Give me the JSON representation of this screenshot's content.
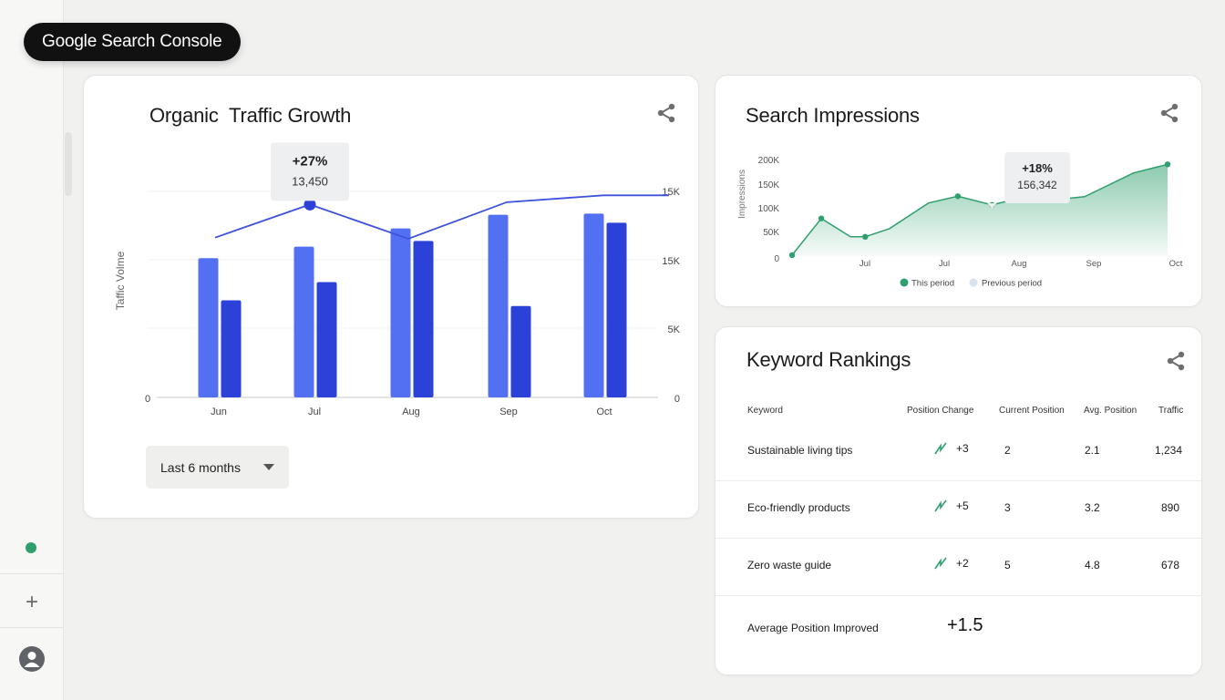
{
  "brand": {
    "title": "Google Search Console"
  },
  "sidebar": {
    "status_color": "#2e9f6d",
    "add_icon": "plus-icon",
    "account_icon": "account-circle-icon"
  },
  "traffic_card": {
    "title": "Organic  Traffic Growth",
    "share_icon": "share-icon",
    "period_selector": {
      "selected": "Last 6 months",
      "icon": "caret-down-icon"
    },
    "tooltip": {
      "change": "+27%",
      "value": "13,450"
    }
  },
  "impressions_card": {
    "title": "Search Impressions",
    "share_icon": "share-icon",
    "tooltip": {
      "change": "+18%",
      "value": "156,342"
    }
  },
  "keyword_card": {
    "title": "Keyword Rankings",
    "share_icon": "share-icon",
    "columns": [
      "Keyword",
      "Position Change",
      "Current Position",
      "Avg. Position",
      "Traffic"
    ],
    "rows": [
      {
        "keyword": "Sustainable living tips",
        "change": "+3",
        "current": "2",
        "avg": "2.1",
        "traffic": "1,234"
      },
      {
        "keyword": "Eco-friendly products",
        "change": "+5",
        "current": "3",
        "avg": "3.2",
        "traffic": "890"
      },
      {
        "keyword": "Zero waste guide",
        "change": "+2",
        "current": "5",
        "avg": "4.8",
        "traffic": "678"
      }
    ],
    "summary": {
      "label": "Average Position Improved",
      "value": "+1.5"
    },
    "trend_color": "#2e9f6d"
  },
  "chart_data": [
    {
      "type": "bar",
      "title": "Organic  Traffic Growth",
      "ylabel": "Taffic Volme",
      "categories": [
        "Jun",
        "Jul",
        "Aug",
        "Sep",
        "Oct"
      ],
      "left_ticks": [
        "0"
      ],
      "right_ticks": [
        "15K",
        "15K",
        "5K",
        "0"
      ],
      "series": [
        {
          "values": [
            12.2,
            13.2,
            14.8,
            16.0,
            16.1
          ],
          "color": "#5470f2"
        },
        {
          "values": [
            8.5,
            10.1,
            13.7,
            8.0,
            15.3
          ],
          "color": "#2b41d8"
        }
      ],
      "trend_line": {
        "values": [
          14.0,
          16.9,
          13.9,
          17.1,
          17.7
        ],
        "highlight_index": 1,
        "color": "#3e52de"
      },
      "ylim": [
        0,
        21
      ],
      "colors": {
        "light_bar": "#5470f2",
        "dark_bar": "#2b41d8",
        "line": "#3e52de"
      }
    },
    {
      "type": "area",
      "title": "Search Impressions",
      "ylabel": "Impressions",
      "categories": [
        "Jul",
        "Jul",
        "Aug",
        "Sep",
        "Oct"
      ],
      "y_ticks": [
        "200K",
        "150K",
        "100K",
        "50K",
        "0"
      ],
      "series": [
        {
          "name": "This period",
          "color": "#2e9f6d",
          "points": [
            [
              0.0,
              2
            ],
            [
              0.6,
              78
            ],
            [
              1.2,
              40
            ],
            [
              1.5,
              40
            ],
            [
              2.0,
              57
            ],
            [
              2.8,
              110
            ],
            [
              3.4,
              124
            ],
            [
              4.1,
              106
            ],
            [
              4.5,
              116
            ],
            [
              5.0,
              116
            ],
            [
              5.5,
              118
            ],
            [
              6.0,
              123
            ],
            [
              7.0,
              172
            ],
            [
              7.7,
              190
            ]
          ],
          "markers": [
            0,
            1,
            3,
            6,
            7,
            10,
            13
          ],
          "highlight_index": 7
        },
        {
          "name": "Previous period",
          "color": "#d6e3ee"
        }
      ],
      "ylim": [
        0,
        200
      ]
    }
  ]
}
